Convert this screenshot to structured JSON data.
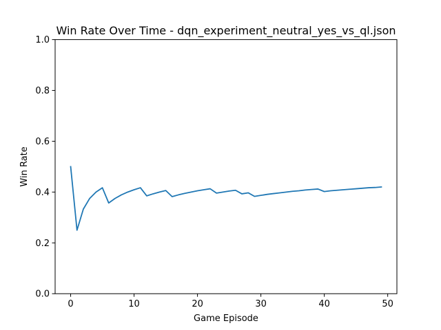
{
  "chart_data": {
    "type": "line",
    "title": "Win Rate Over Time - dqn_experiment_neutral_yes_vs_ql.json",
    "xlabel": "Game Episode",
    "ylabel": "Win Rate",
    "xlim": [
      -2.45,
      51.45
    ],
    "ylim": [
      0.0,
      1.0
    ],
    "xticks": [
      0,
      10,
      20,
      30,
      40,
      50
    ],
    "yticks": [
      0.0,
      0.2,
      0.4,
      0.6,
      0.8,
      1.0
    ],
    "xtick_labels": [
      "0",
      "10",
      "20",
      "30",
      "40",
      "50"
    ],
    "ytick_labels": [
      "0.0",
      "0.2",
      "0.4",
      "0.6",
      "0.8",
      "1.0"
    ],
    "grid": false,
    "series": [
      {
        "name": "Win Rate",
        "color": "#1f77b4",
        "x": [
          0,
          1,
          2,
          3,
          4,
          5,
          6,
          7,
          8,
          9,
          10,
          11,
          12,
          13,
          14,
          15,
          16,
          17,
          18,
          19,
          20,
          21,
          22,
          23,
          24,
          25,
          26,
          27,
          28,
          29,
          30,
          31,
          32,
          33,
          34,
          35,
          36,
          37,
          38,
          39,
          40,
          41,
          42,
          43,
          44,
          45,
          46,
          47,
          48,
          49
        ],
        "values": [
          0.5,
          0.25,
          0.333,
          0.375,
          0.4,
          0.417,
          0.357,
          0.375,
          0.389,
          0.4,
          0.409,
          0.417,
          0.385,
          0.393,
          0.4,
          0.406,
          0.382,
          0.389,
          0.395,
          0.4,
          0.405,
          0.409,
          0.413,
          0.396,
          0.4,
          0.404,
          0.407,
          0.393,
          0.397,
          0.383,
          0.387,
          0.391,
          0.394,
          0.397,
          0.4,
          0.403,
          0.405,
          0.408,
          0.41,
          0.412,
          0.402,
          0.405,
          0.407,
          0.409,
          0.411,
          0.413,
          0.415,
          0.417,
          0.418,
          0.42
        ]
      }
    ]
  }
}
